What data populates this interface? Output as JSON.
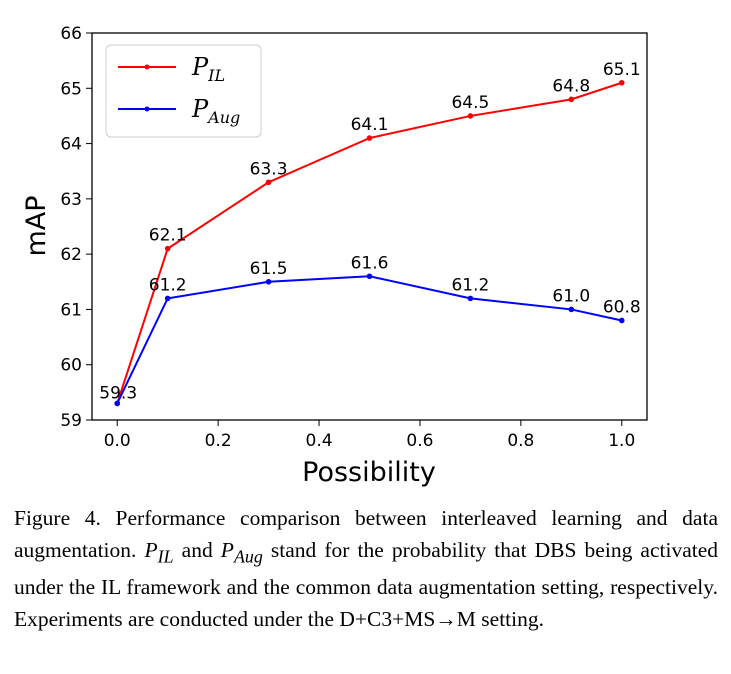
{
  "chart_data": {
    "type": "line",
    "x": [
      0.0,
      0.1,
      0.3,
      0.5,
      0.7,
      0.9,
      1.0
    ],
    "series": [
      {
        "name": "P_IL",
        "legend_main": "P",
        "legend_sub": "IL",
        "color": "#ff0000",
        "values": [
          59.3,
          62.1,
          63.3,
          64.1,
          64.5,
          64.8,
          65.1
        ],
        "labels": [
          "59.3",
          "62.1",
          "63.3",
          "64.1",
          "64.5",
          "64.8",
          "65.1"
        ]
      },
      {
        "name": "P_Aug",
        "legend_main": "P",
        "legend_sub": "Aug",
        "color": "#0000ff",
        "values": [
          59.3,
          61.2,
          61.5,
          61.6,
          61.2,
          61.0,
          60.8
        ],
        "labels": [
          "",
          "61.2",
          "61.5",
          "61.6",
          "61.2",
          "61.0",
          "60.8"
        ]
      }
    ],
    "xlabel": "Possibility",
    "ylabel": "mAP",
    "xlim": [
      -0.05,
      1.05
    ],
    "ylim": [
      59,
      66
    ],
    "xticks": [
      "0.0",
      "0.2",
      "0.4",
      "0.6",
      "0.8",
      "1.0"
    ],
    "yticks": [
      "59",
      "60",
      "61",
      "62",
      "63",
      "64",
      "65",
      "66"
    ],
    "grid": false,
    "legend_position": "upper-left"
  },
  "caption": {
    "figure_label": "Figure 4.",
    "text_before": " Performance comparison between interleaved learning and data augmentation. ",
    "p_il": "P",
    "p_il_sub": "IL",
    "and_word": " and ",
    "p_aug": "P",
    "p_aug_sub": "Aug",
    "text_after": " stand for the probability that DBS being activated under the IL framework and the common data augmentation setting, respectively. Experiments are conducted under the D+C3+MS→M setting."
  }
}
